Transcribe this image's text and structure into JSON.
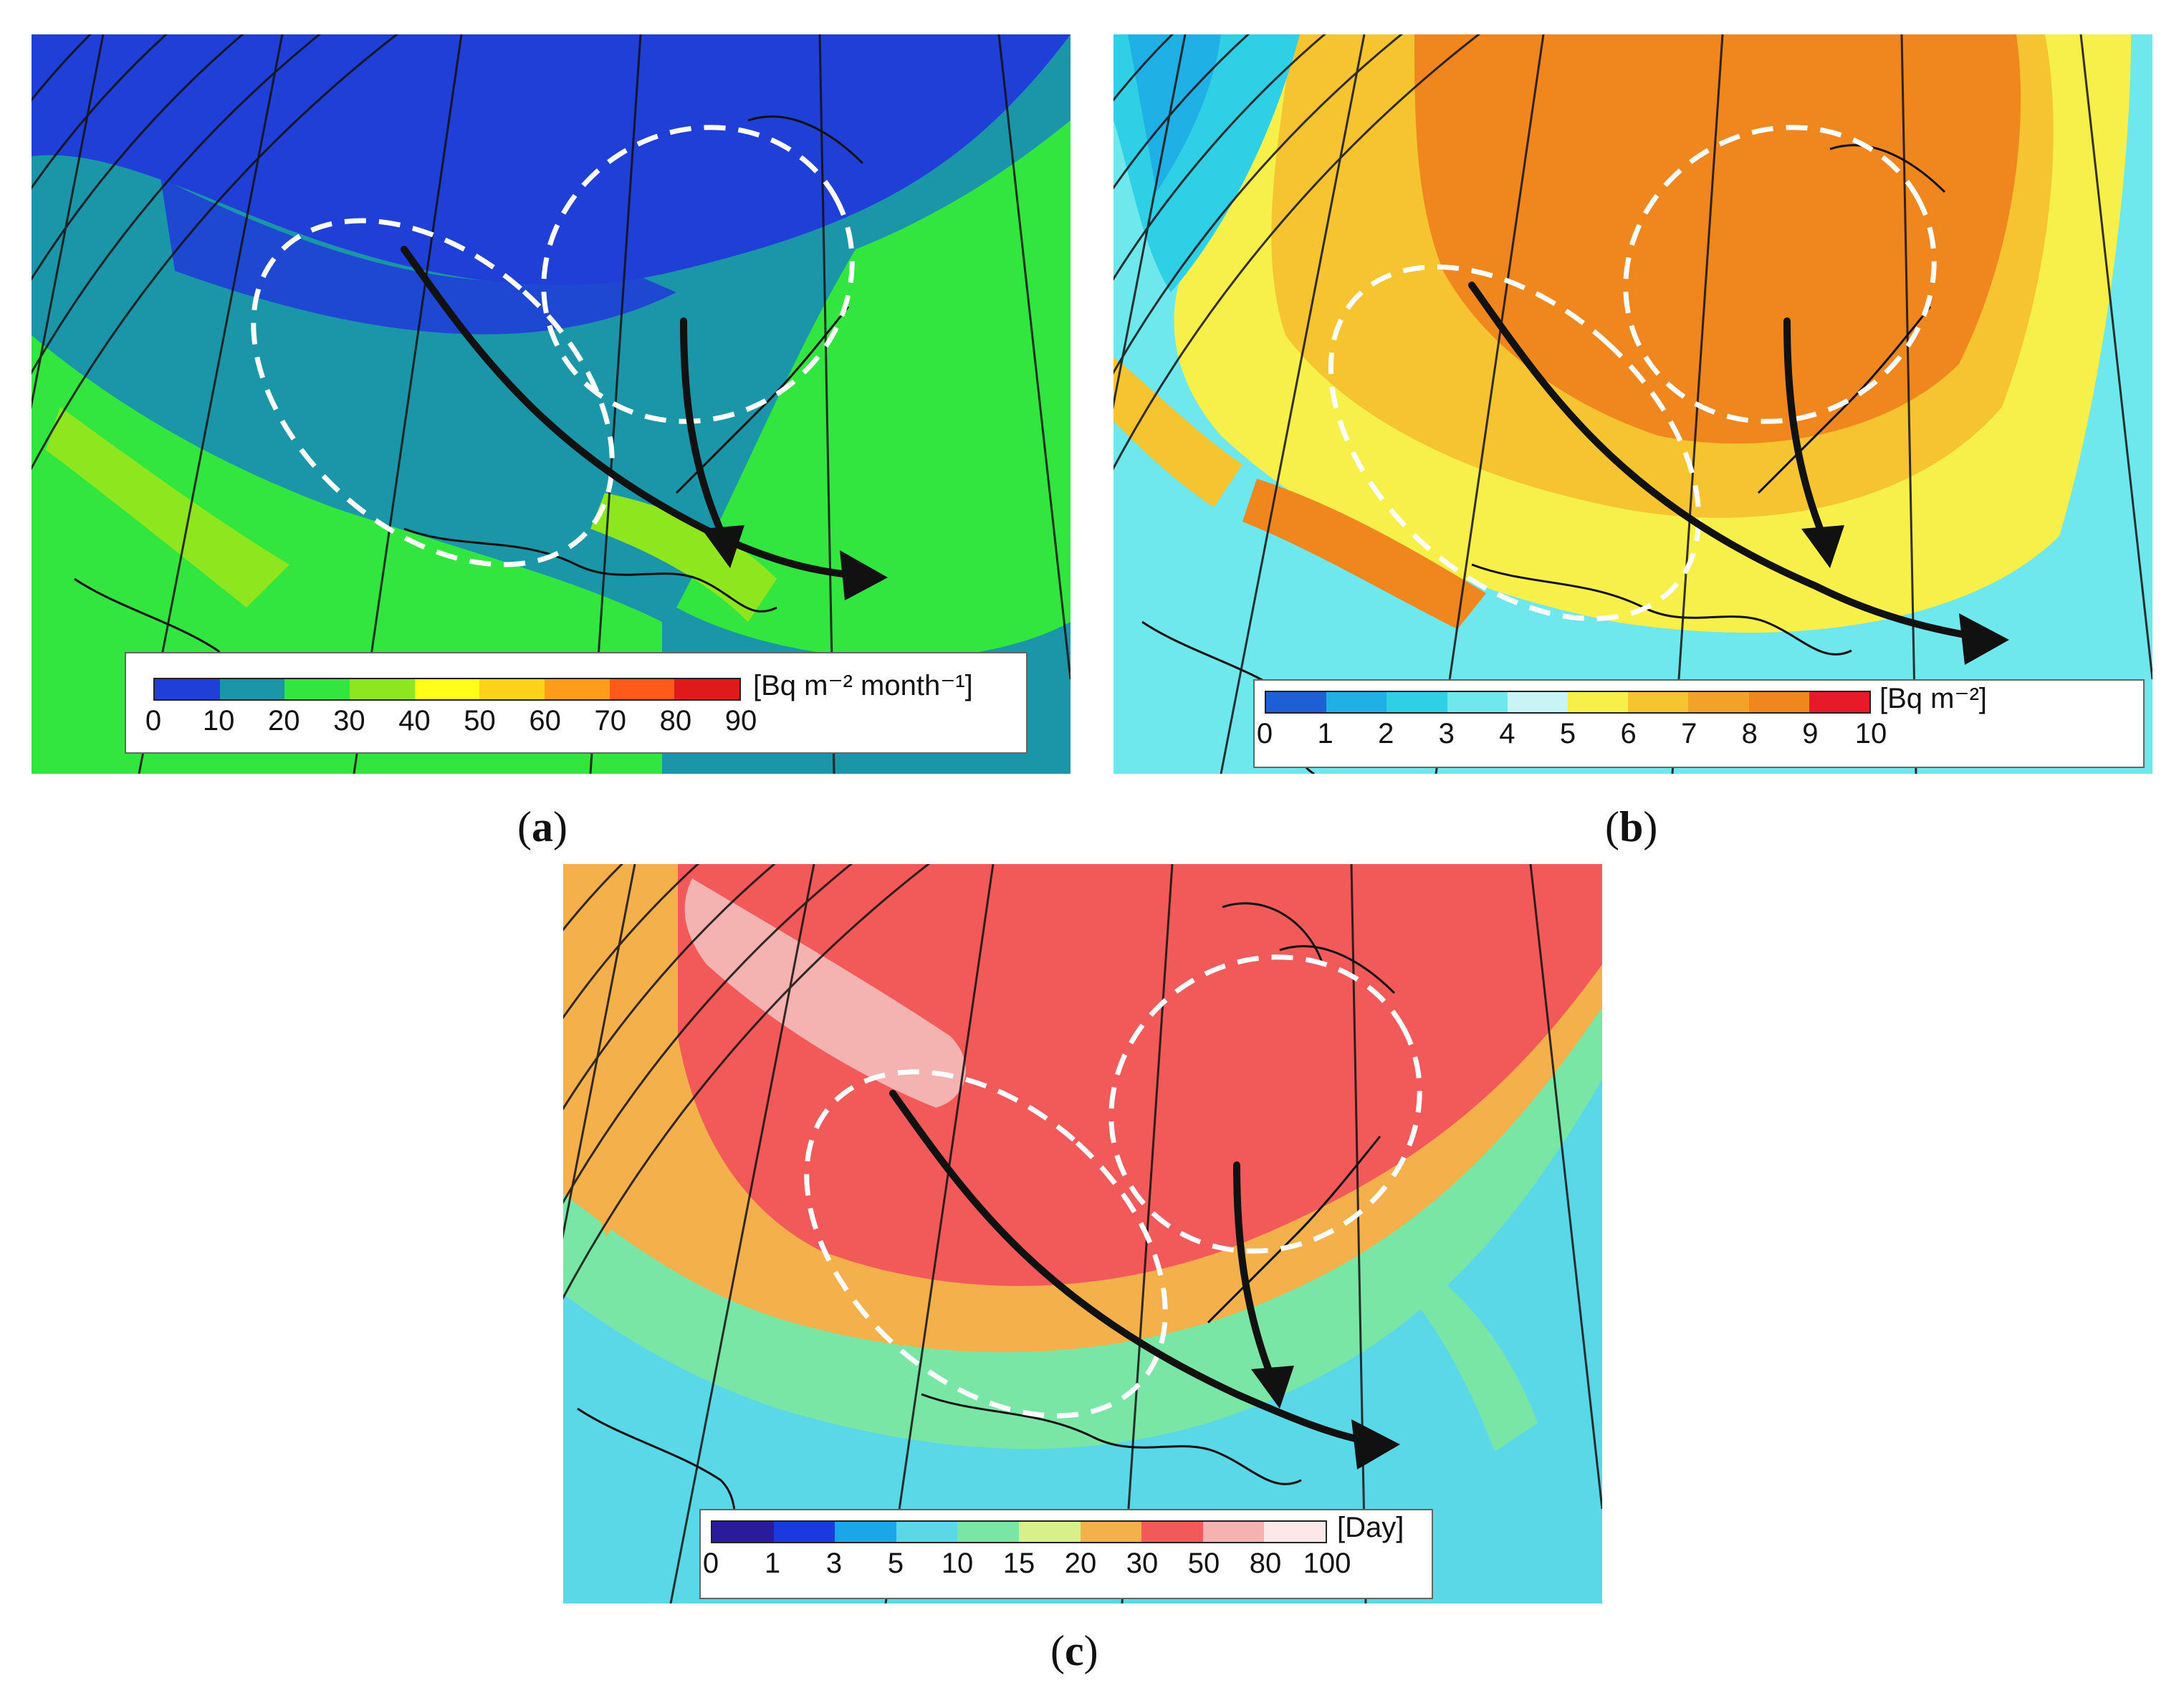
{
  "panels": [
    {
      "id": "a",
      "caption_open": "(",
      "caption_letter": "a",
      "caption_close": ")",
      "legend": {
        "unit": "[Bq m⁻² month⁻¹]",
        "ticks": [
          "0",
          "10",
          "20",
          "30",
          "40",
          "50",
          "60",
          "70",
          "80",
          "90"
        ],
        "colors": [
          "#1f3fd6",
          "#1a96a8",
          "#33e63f",
          "#8ee61f",
          "#ffff1a",
          "#ffd21a",
          "#ff9c1a",
          "#ff5a1a",
          "#e01a1a"
        ]
      },
      "background_color": "#1a96a8",
      "fields": [
        "#1f3fd6",
        "#1a96a8",
        "#33e63f",
        "#8ee61f"
      ]
    },
    {
      "id": "b",
      "caption_open": "(",
      "caption_letter": "b",
      "caption_close": ")",
      "legend": {
        "unit": "[Bq m⁻²]",
        "ticks": [
          "0",
          "1",
          "2",
          "3",
          "4",
          "5",
          "6",
          "7",
          "8",
          "9",
          "10"
        ],
        "colors": [
          "#1f5fd6",
          "#1fb0e6",
          "#2fd0e6",
          "#6ee8ec",
          "#c8f4f6",
          "#f8f04a",
          "#f6c430",
          "#f2a228",
          "#f0861e",
          "#e81a2a"
        ]
      },
      "background_color": "#6ee8ec",
      "fields": [
        "#6ee8ec",
        "#f8f04a",
        "#f6c430",
        "#f0861e"
      ]
    },
    {
      "id": "c",
      "caption_open": "(",
      "caption_letter": "c",
      "caption_close": ")",
      "legend": {
        "unit": "[Day]",
        "ticks": [
          "0",
          "1",
          "3",
          "5",
          "10",
          "15",
          "20",
          "30",
          "50",
          "80",
          "100"
        ],
        "colors": [
          "#2a1a9c",
          "#1a3ae0",
          "#1aa6e8",
          "#5ad8e8",
          "#7ae6a6",
          "#d8f08a",
          "#f4b04a",
          "#f25a5a",
          "#f4b2b0",
          "#fce8e8"
        ]
      },
      "background_color": "#5ad8e8",
      "fields": [
        "#5ad8e8",
        "#7ae6a6",
        "#f4b04a",
        "#f25a5a",
        "#f4b2b0"
      ]
    }
  ]
}
